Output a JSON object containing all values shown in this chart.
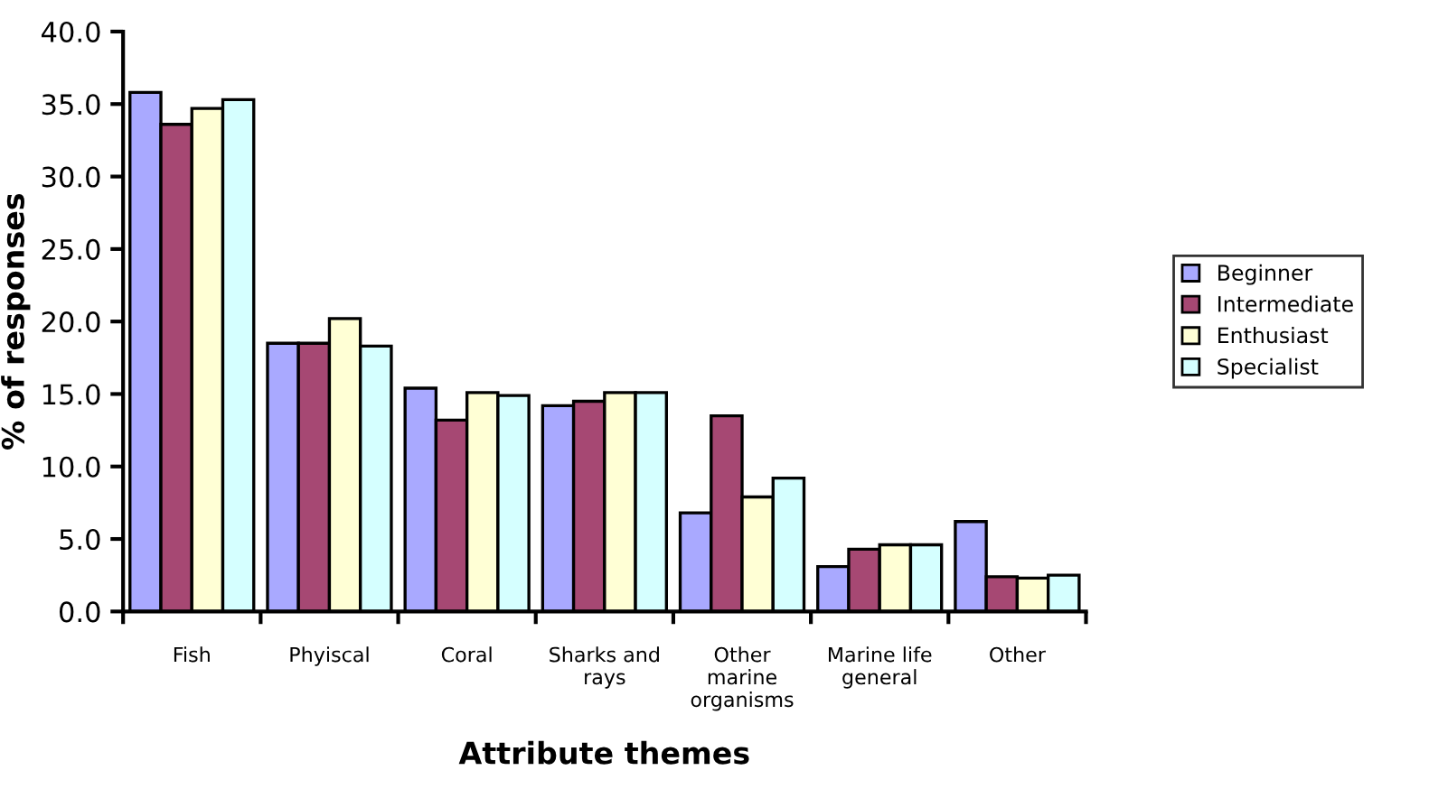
{
  "chart_data": {
    "type": "bar",
    "xlabel": "Attribute themes",
    "ylabel": "% of responses",
    "categories": [
      "Fish",
      "Phyiscal",
      "Coral",
      "Sharks and\nrays",
      "Other\nmarine\norganisms",
      "Marine life\ngeneral",
      "Other"
    ],
    "series": [
      {
        "name": "Beginner",
        "color": "#a9a9ff",
        "values": [
          35.8,
          18.5,
          15.4,
          14.2,
          6.8,
          3.1,
          6.2
        ]
      },
      {
        "name": "Intermediate",
        "color": "#a64873",
        "values": [
          33.6,
          18.5,
          13.2,
          14.5,
          13.5,
          4.3,
          2.4
        ]
      },
      {
        "name": "Enthusiast",
        "color": "#ffffd5",
        "values": [
          34.7,
          20.2,
          15.1,
          15.1,
          7.9,
          4.6,
          2.3
        ]
      },
      {
        "name": "Specialist",
        "color": "#d5ffff",
        "values": [
          35.3,
          18.3,
          14.9,
          15.1,
          9.2,
          4.6,
          2.5
        ]
      }
    ],
    "ylim": [
      0,
      40
    ],
    "yticks": [
      {
        "value": 0,
        "label": "0.0"
      },
      {
        "value": 5,
        "label": "5.0"
      },
      {
        "value": 10,
        "label": "10.0"
      },
      {
        "value": 15,
        "label": "15.0"
      },
      {
        "value": 20,
        "label": "20.0"
      },
      {
        "value": 25,
        "label": "25.0"
      },
      {
        "value": 30,
        "label": "30.0"
      },
      {
        "value": 35,
        "label": "35.0"
      },
      {
        "value": 40,
        "label": "40.0"
      }
    ],
    "grid": false,
    "legend": "right"
  }
}
